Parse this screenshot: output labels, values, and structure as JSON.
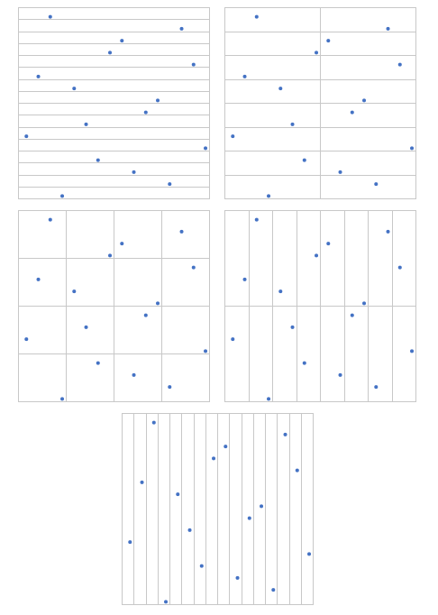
{
  "chart_data": [
    {
      "type": "scatter",
      "color": "#4472c4",
      "grid": true,
      "x": [
        2.7,
        13.7,
        8.7,
        7.7,
        14.7,
        1.7,
        4.7,
        11.7,
        10.7,
        5.7,
        0.7,
        15.7,
        6.7,
        9.7,
        12.7,
        3.7
      ],
      "values": [
        15.2,
        14.2,
        13.2,
        12.2,
        11.2,
        10.2,
        9.2,
        8.2,
        7.2,
        6.2,
        5.2,
        4.2,
        3.2,
        2.2,
        1.2,
        0.2
      ],
      "xlim": [
        0,
        16
      ],
      "ylim": [
        0,
        16
      ],
      "xticks": [
        0,
        16
      ],
      "yticks": [
        0,
        1,
        2,
        3,
        4,
        5,
        6,
        7,
        8,
        9,
        10,
        11,
        12,
        13,
        14,
        15,
        16
      ]
    },
    {
      "type": "scatter",
      "color": "#4472c4",
      "grid": true,
      "x": [
        2.7,
        13.7,
        8.7,
        7.7,
        14.7,
        1.7,
        4.7,
        11.7,
        10.7,
        5.7,
        0.7,
        15.7,
        6.7,
        9.7,
        12.7,
        3.7
      ],
      "values": [
        15.2,
        14.2,
        13.2,
        12.2,
        11.2,
        10.2,
        9.2,
        8.2,
        7.2,
        6.2,
        5.2,
        4.2,
        3.2,
        2.2,
        1.2,
        0.2
      ],
      "xlim": [
        0,
        16
      ],
      "ylim": [
        0,
        16
      ],
      "xticks": [
        0,
        8,
        16
      ],
      "yticks": [
        0,
        2,
        4,
        6,
        8,
        10,
        12,
        14,
        16
      ]
    },
    {
      "type": "scatter",
      "color": "#4472c4",
      "grid": true,
      "x": [
        2.7,
        13.7,
        8.7,
        7.7,
        14.7,
        1.7,
        4.7,
        11.7,
        10.7,
        5.7,
        0.7,
        15.7,
        6.7,
        9.7,
        12.7,
        3.7
      ],
      "values": [
        15.2,
        14.2,
        13.2,
        12.2,
        11.2,
        10.2,
        9.2,
        8.2,
        7.2,
        6.2,
        5.2,
        4.2,
        3.2,
        2.2,
        1.2,
        0.2
      ],
      "xlim": [
        0,
        16
      ],
      "ylim": [
        0,
        16
      ],
      "xticks": [
        0,
        4,
        8,
        12,
        16
      ],
      "yticks": [
        0,
        4,
        8,
        12,
        16
      ]
    },
    {
      "type": "scatter",
      "color": "#4472c4",
      "grid": true,
      "x": [
        2.7,
        13.7,
        8.7,
        7.7,
        14.7,
        1.7,
        4.7,
        11.7,
        10.7,
        5.7,
        0.7,
        15.7,
        6.7,
        9.7,
        12.7,
        3.7
      ],
      "values": [
        15.2,
        14.2,
        13.2,
        12.2,
        11.2,
        10.2,
        9.2,
        8.2,
        7.2,
        6.2,
        5.2,
        4.2,
        3.2,
        2.2,
        1.2,
        0.2
      ],
      "xlim": [
        0,
        16
      ],
      "ylim": [
        0,
        16
      ],
      "xticks": [
        0,
        2,
        4,
        6,
        8,
        10,
        12,
        14,
        16
      ],
      "yticks": [
        0,
        8,
        16
      ]
    },
    {
      "type": "scatter",
      "color": "#4472c4",
      "grid": true,
      "x": [
        2.7,
        13.7,
        8.7,
        7.7,
        14.7,
        1.7,
        4.7,
        11.7,
        10.7,
        5.7,
        0.7,
        15.7,
        6.7,
        9.7,
        12.7,
        3.7
      ],
      "values": [
        15.2,
        14.2,
        13.2,
        12.2,
        11.2,
        10.2,
        9.2,
        8.2,
        7.2,
        6.2,
        5.2,
        4.2,
        3.2,
        2.2,
        1.2,
        0.2
      ],
      "xlim": [
        0,
        16
      ],
      "ylim": [
        0,
        16
      ],
      "xticks": [
        0,
        1,
        2,
        3,
        4,
        5,
        6,
        7,
        8,
        9,
        10,
        11,
        12,
        13,
        14,
        15,
        16
      ],
      "yticks": [
        0,
        16
      ]
    }
  ]
}
